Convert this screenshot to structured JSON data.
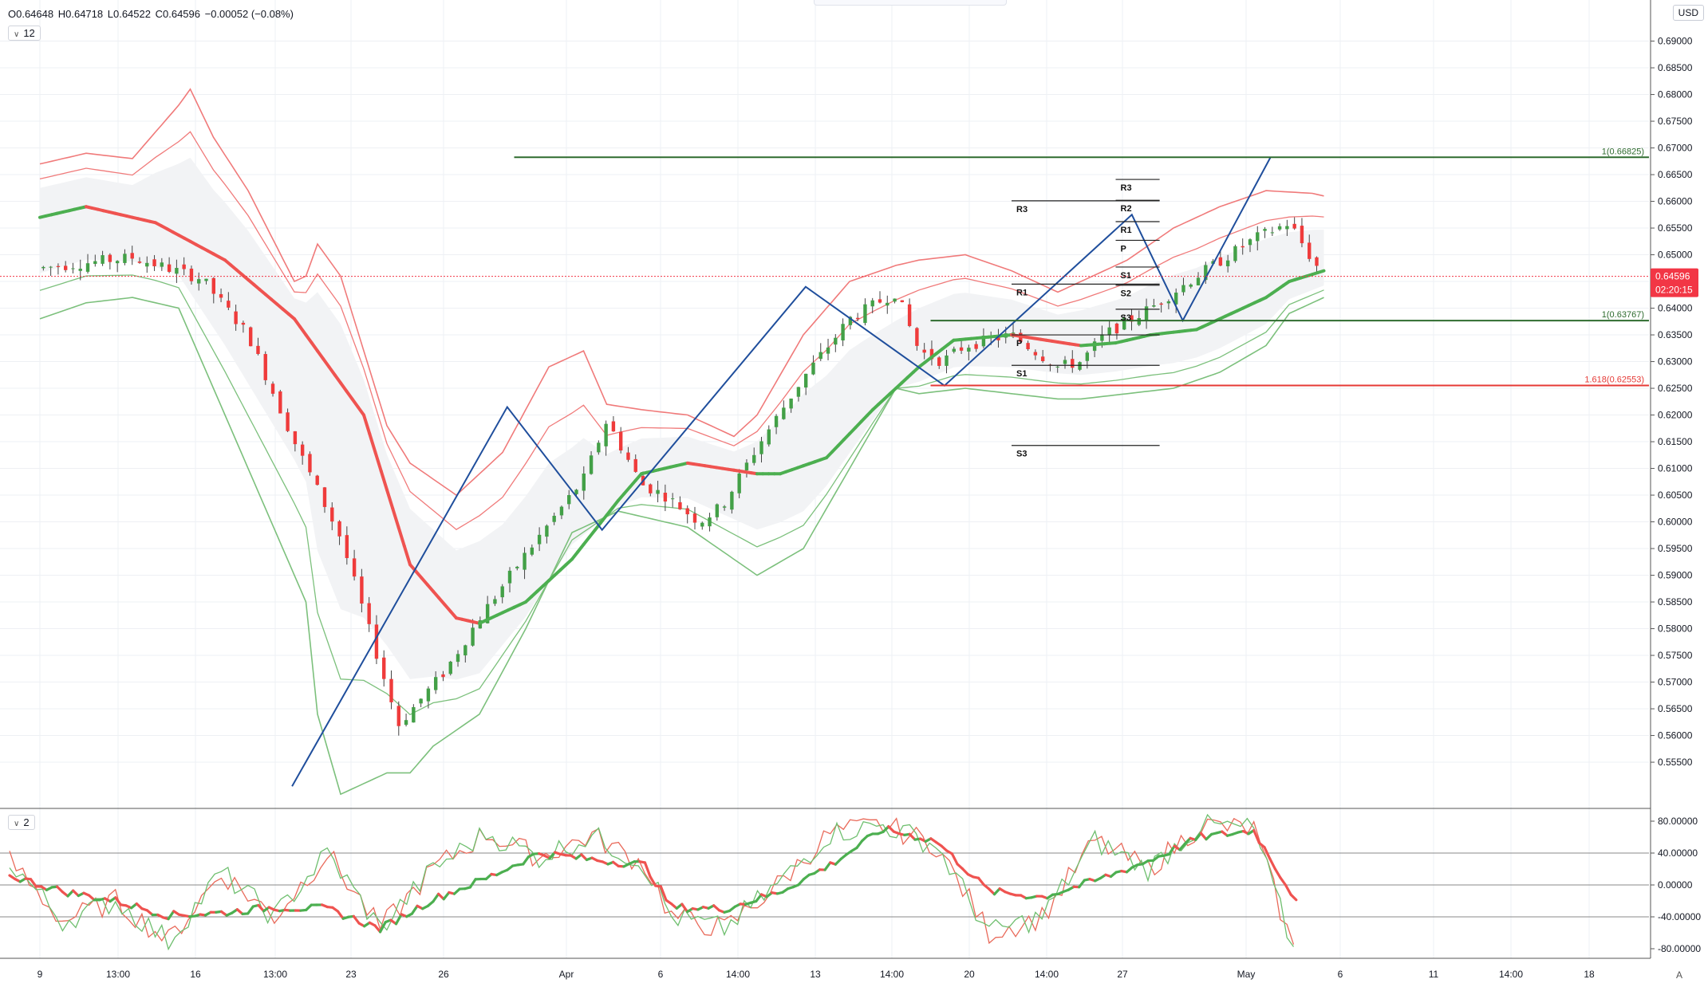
{
  "header": {
    "ohlc": {
      "o": "O0.64648",
      "h": "H0.64718",
      "l": "L0.64522",
      "c": "C0.64596",
      "chg": "−0.00052 (−0.08%)"
    },
    "main_badge": "12",
    "osc_badge": "2",
    "currency": "USD",
    "auto_label": "A"
  },
  "colors": {
    "bull": "#43a047",
    "bear": "#ef3b3b",
    "ema_up": "#4caf50",
    "ema_down": "#ef5350",
    "band_red": "#f07a7a",
    "band_green": "#7cc07c",
    "pattern": "#1f4e9c",
    "fib": "#2e6b2e",
    "fib_ext": "#e53935",
    "grid": "#eef0f4",
    "price_tag": "#f23645"
  },
  "chart_data": [
    {
      "type": "candlestick",
      "title": "",
      "ylabel": "USD",
      "ylim": [
        0.5465,
        0.6965
      ],
      "y_ticks": [
        "0.55500",
        "0.56000",
        "0.56500",
        "0.57000",
        "0.57500",
        "0.58000",
        "0.58500",
        "0.59000",
        "0.59500",
        "0.60000",
        "0.60500",
        "0.61000",
        "0.61500",
        "0.62000",
        "0.62500",
        "0.63000",
        "0.63500",
        "0.64000",
        "0.64500",
        "0.65000",
        "0.65500",
        "0.66000",
        "0.66500",
        "0.67000",
        "0.67500",
        "0.68000",
        "0.68500",
        "0.69000"
      ],
      "x_ticks": [
        "9",
        "13:00",
        "16",
        "13:00",
        "23",
        "26",
        "Apr",
        "6",
        "14:00",
        "13",
        "14:00",
        "20",
        "14:00",
        "27",
        "May",
        "6",
        "11",
        "14:00",
        "18"
      ],
      "last_price": "0.64596",
      "countdown": "02:20:15",
      "price_path": [
        [
          0,
          0.6475
        ],
        [
          4,
          0.6495
        ],
        [
          7,
          0.6455
        ],
        [
          9,
          0.635
        ],
        [
          11,
          0.615
        ],
        [
          13,
          0.597
        ],
        [
          15.5,
          0.562
        ],
        [
          17.5,
          0.572
        ],
        [
          19,
          0.582
        ],
        [
          21,
          0.594
        ],
        [
          23.5,
          0.608
        ],
        [
          24.5,
          0.619
        ],
        [
          26,
          0.607
        ],
        [
          27,
          0.605
        ],
        [
          28.5,
          0.6
        ],
        [
          29.5,
          0.603
        ],
        [
          31,
          0.614
        ],
        [
          33,
          0.627
        ],
        [
          35,
          0.638
        ],
        [
          37,
          0.643
        ],
        [
          38,
          0.632
        ],
        [
          39,
          0.63
        ],
        [
          40,
          0.633
        ],
        [
          42,
          0.635
        ],
        [
          44,
          0.629
        ],
        [
          45,
          0.63
        ],
        [
          46,
          0.635
        ],
        [
          48,
          0.64
        ],
        [
          50,
          0.646
        ],
        [
          52.5,
          0.653
        ],
        [
          54,
          0.656
        ],
        [
          55,
          0.649
        ],
        [
          55.5,
          0.64596
        ]
      ],
      "ema_fast": [
        [
          0,
          0.657
        ],
        [
          2,
          0.659
        ],
        [
          5,
          0.656
        ],
        [
          8,
          0.649
        ],
        [
          11,
          0.638
        ],
        [
          14,
          0.62
        ],
        [
          16,
          0.592
        ],
        [
          18,
          0.582
        ],
        [
          19,
          0.581
        ],
        [
          21,
          0.585
        ],
        [
          23,
          0.593
        ],
        [
          25,
          0.604
        ],
        [
          26,
          0.609
        ],
        [
          27,
          0.61
        ],
        [
          28,
          0.611
        ],
        [
          29.5,
          0.61
        ],
        [
          31,
          0.609
        ],
        [
          32,
          0.609
        ],
        [
          34,
          0.612
        ],
        [
          36,
          0.621
        ],
        [
          38,
          0.629
        ],
        [
          39.5,
          0.634
        ],
        [
          42,
          0.635
        ],
        [
          43.5,
          0.634
        ],
        [
          45,
          0.633
        ],
        [
          46.5,
          0.6335
        ],
        [
          48,
          0.635
        ],
        [
          50,
          0.636
        ],
        [
          51.5,
          0.639
        ],
        [
          53,
          0.642
        ],
        [
          54,
          0.645
        ],
        [
          55.5,
          0.647
        ]
      ],
      "band_upper": [
        [
          0,
          0.667
        ],
        [
          2,
          0.669
        ],
        [
          4,
          0.668
        ],
        [
          6,
          0.678
        ],
        [
          6.5,
          0.681
        ],
        [
          7.5,
          0.672
        ],
        [
          9,
          0.662
        ],
        [
          11,
          0.645
        ],
        [
          11.5,
          0.646
        ],
        [
          12,
          0.652
        ],
        [
          13,
          0.646
        ],
        [
          15,
          0.618
        ],
        [
          16,
          0.611
        ],
        [
          17,
          0.608
        ],
        [
          18,
          0.605
        ],
        [
          20,
          0.613
        ],
        [
          22,
          0.629
        ],
        [
          23.5,
          0.632
        ],
        [
          24.5,
          0.622
        ],
        [
          26,
          0.621
        ],
        [
          28,
          0.62
        ],
        [
          30,
          0.616
        ],
        [
          31,
          0.62
        ],
        [
          33,
          0.635
        ],
        [
          35,
          0.645
        ],
        [
          37,
          0.648
        ],
        [
          38,
          0.649
        ],
        [
          40,
          0.65
        ],
        [
          42,
          0.647
        ],
        [
          44,
          0.643
        ],
        [
          45,
          0.645
        ],
        [
          47,
          0.649
        ],
        [
          49,
          0.655
        ],
        [
          51,
          0.659
        ],
        [
          53,
          0.662
        ],
        [
          55,
          0.6615
        ],
        [
          55.5,
          0.661
        ]
      ],
      "band_lower": [
        [
          0,
          0.638
        ],
        [
          2,
          0.641
        ],
        [
          4,
          0.642
        ],
        [
          6,
          0.64
        ],
        [
          8,
          0.62
        ],
        [
          10,
          0.6
        ],
        [
          11.5,
          0.585
        ],
        [
          12,
          0.564
        ],
        [
          13,
          0.549
        ],
        [
          15,
          0.553
        ],
        [
          16,
          0.553
        ],
        [
          17,
          0.558
        ],
        [
          19,
          0.564
        ],
        [
          21,
          0.58
        ],
        [
          23,
          0.598
        ],
        [
          25,
          0.602
        ],
        [
          26,
          0.601
        ],
        [
          28,
          0.599
        ],
        [
          30,
          0.593
        ],
        [
          31,
          0.59
        ],
        [
          33,
          0.595
        ],
        [
          35,
          0.61
        ],
        [
          37,
          0.625
        ],
        [
          38,
          0.624
        ],
        [
          40,
          0.625
        ],
        [
          42,
          0.624
        ],
        [
          44,
          0.623
        ],
        [
          45,
          0.623
        ],
        [
          47,
          0.624
        ],
        [
          49,
          0.625
        ],
        [
          51,
          0.628
        ],
        [
          53,
          0.633
        ],
        [
          54,
          0.639
        ],
        [
          55.5,
          0.642
        ]
      ],
      "zigzag": [
        [
          10.9,
          0.5505
        ],
        [
          20.2,
          0.6215
        ],
        [
          24.3,
          0.5985
        ],
        [
          33.1,
          0.644
        ],
        [
          39.1,
          0.6255
        ],
        [
          47.2,
          0.6575
        ],
        [
          49.4,
          0.6377
        ],
        [
          53.2,
          0.6683
        ]
      ],
      "fib_levels": [
        {
          "label": "1(0.66825)",
          "value": 0.66825,
          "color": "#2e6b2e",
          "x_from": 20.5
        },
        {
          "label": "1(0.63767)",
          "value": 0.63767,
          "color": "#2e6b2e",
          "x_from": 38.5
        },
        {
          "label": "1.618(0.62553)",
          "value": 0.62553,
          "color": "#e53935",
          "x_from": 38.5
        }
      ],
      "pivots_a": {
        "x_from": 42.0,
        "x_to": 48.4,
        "levels": [
          {
            "label": "R3",
            "value": 0.6601
          },
          {
            "label": "R1",
            "value": 0.6445
          },
          {
            "label": "P",
            "value": 0.635
          },
          {
            "label": "S1",
            "value": 0.6293
          },
          {
            "label": "S3",
            "value": 0.6143
          }
        ]
      },
      "pivots_b": {
        "x_from": 46.5,
        "x_to": 48.4,
        "levels": [
          {
            "label": "R3",
            "value": 0.6641
          },
          {
            "label": "R2",
            "value": 0.6602
          },
          {
            "label": "R1",
            "value": 0.6562
          },
          {
            "label": "P",
            "value": 0.6527
          },
          {
            "label": "S1",
            "value": 0.6477
          },
          {
            "label": "S2",
            "value": 0.6443
          },
          {
            "label": "S3",
            "value": 0.6398
          }
        ]
      }
    },
    {
      "type": "line",
      "title": "",
      "ylim": [
        -92,
        92
      ],
      "y_ticks": [
        "80.00000",
        "40.00000",
        "0.00000",
        "-40.00000",
        "-80.00000"
      ],
      "levels": [
        40,
        0,
        -40
      ],
      "series": [
        {
          "values": [
            [
              0,
              12
            ],
            [
              2,
              -8
            ],
            [
              4,
              -20
            ],
            [
              6,
              -38
            ],
            [
              8,
              -35
            ],
            [
              10,
              -28
            ],
            [
              12,
              -30
            ],
            [
              14,
              -55
            ],
            [
              16,
              -18
            ],
            [
              18,
              8
            ],
            [
              20,
              40
            ],
            [
              22,
              32
            ],
            [
              24,
              25
            ],
            [
              25,
              -28
            ],
            [
              27,
              -30
            ],
            [
              29,
              -10
            ],
            [
              31,
              25
            ],
            [
              33,
              70
            ],
            [
              35,
              55
            ],
            [
              37,
              -8
            ],
            [
              39,
              -15
            ],
            [
              41,
              5
            ],
            [
              43,
              30
            ],
            [
              45,
              60
            ],
            [
              47,
              68
            ],
            [
              48.5,
              -15
            ]
          ]
        },
        {
          "values": [
            [
              0,
              30
            ],
            [
              2,
              -45
            ],
            [
              4,
              -20
            ],
            [
              6,
              -70
            ],
            [
              8,
              15
            ],
            [
              10,
              -40
            ],
            [
              12,
              40
            ],
            [
              14,
              -55
            ],
            [
              16,
              20
            ],
            [
              18,
              65
            ],
            [
              20,
              35
            ],
            [
              22,
              62
            ],
            [
              24,
              25
            ],
            [
              25,
              -40
            ],
            [
              27,
              -55
            ],
            [
              29,
              0
            ],
            [
              31,
              65
            ],
            [
              33,
              75
            ],
            [
              35,
              50
            ],
            [
              37,
              -60
            ],
            [
              39,
              -40
            ],
            [
              41,
              55
            ],
            [
              43,
              20
            ],
            [
              45,
              75
            ],
            [
              47,
              70
            ],
            [
              48.5,
              -82
            ]
          ]
        }
      ]
    }
  ]
}
